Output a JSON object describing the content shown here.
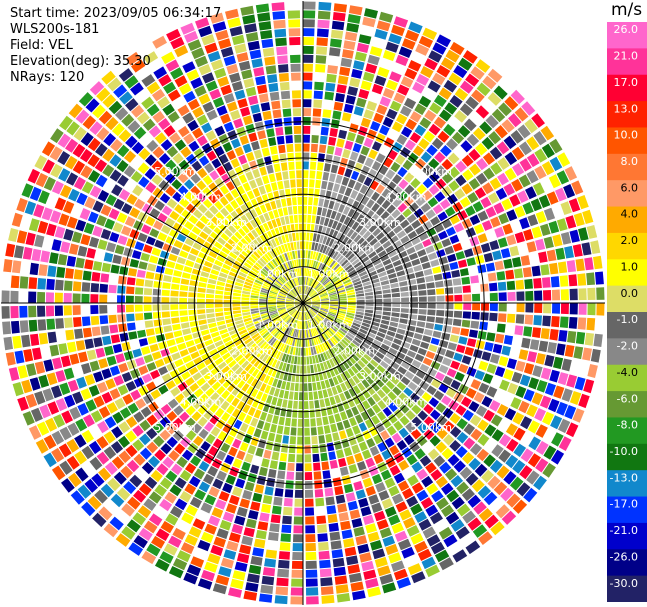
{
  "header": {
    "start_time": "Start time: 2023/09/05 06:34:17",
    "instrument": "WLS200s-181",
    "field": "Field: VEL",
    "elevation": "Elevation(deg): 35.30",
    "nrays": "NRays: 120"
  },
  "colorbar": {
    "unit": "m/s",
    "ticks": [
      "26.0",
      "21.0",
      "17.0",
      "13.0",
      "10.0",
      "8.0",
      "6.0",
      "4.0",
      "2.0",
      "1.0",
      "0.0",
      "-1.0",
      "-2.0",
      "-4.0",
      "-6.0",
      "-8.0",
      "-10.0",
      "-13.0",
      "-17.0",
      "-21.0",
      "-26.0",
      "-30.0"
    ],
    "colors": [
      "#ff66cc",
      "#ff3399",
      "#ff0033",
      "#ff2200",
      "#ff5500",
      "#ff7733",
      "#ff9966",
      "#ffaa00",
      "#ffd700",
      "#ffff00",
      "#dddd66",
      "#666666",
      "#888888",
      "#99cc33",
      "#669933",
      "#229922",
      "#117711",
      "#1188cc",
      "#0033ff",
      "#0000cc",
      "#000088",
      "#222266"
    ]
  },
  "chart_data": {
    "type": "ppi",
    "title": "",
    "field": "VEL",
    "unit": "m/s",
    "elevation_deg": 35.3,
    "nrays": 120,
    "range_ring_labels": [
      "1.00km",
      "2.00km",
      "3.00km",
      "4.00km",
      "5.00km"
    ],
    "range_rings_km": [
      1,
      2,
      3,
      4,
      5
    ],
    "max_range_km": 5.0,
    "color_scale": {
      "bounds": [
        -30,
        -26,
        -21,
        -17,
        -13,
        -10,
        -8,
        -6,
        -4,
        -2,
        -1,
        0,
        1,
        2,
        4,
        6,
        8,
        10,
        13,
        17,
        21,
        26,
        30
      ]
    },
    "pattern": {
      "inner_region_km": [
        0,
        2.6
      ],
      "yellow_sector_deg": [
        200,
        360
      ],
      "gray_sector_deg": [
        10,
        130
      ],
      "green_sector_deg": [
        130,
        200
      ],
      "outer_region": "noisy mixed velocities"
    }
  }
}
